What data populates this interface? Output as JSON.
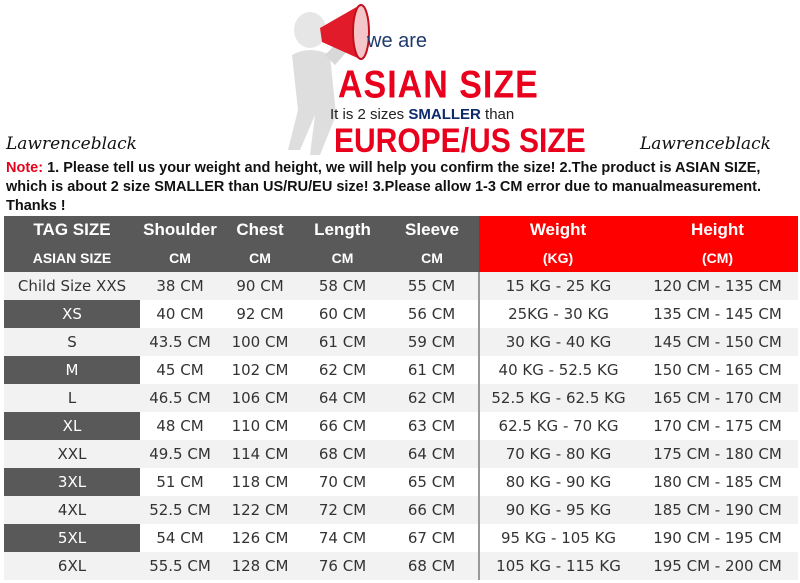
{
  "banner": {
    "we_are": "we are",
    "asian_size": "ASIAN SIZE",
    "line_prefix": "It is 2 sizes",
    "line_bold": "SMALLER",
    "line_suffix": "than",
    "europe_us": "EUROPE/US SIZE"
  },
  "brand_left": "Lawrenceblack",
  "brand_right": "Lawrenceblack",
  "note": {
    "label": "Note:",
    "text": "1. Please tell us your weight and height, we will help you confirm the size!  2.The product is ASIAN SIZE, which is about 2 size SMALLER than US/RU/EU size!  3.Please allow 1-3 CM error due to manualmeasurement. Thanks !"
  },
  "colors": {
    "accent_red": "#ff0000",
    "header_gray": "#595959"
  },
  "table": {
    "headers": [
      "TAG SIZE",
      "Shoulder",
      "Chest",
      "Length",
      "Sleeve",
      "Weight",
      "Height"
    ],
    "subheaders": [
      "ASIAN SIZE",
      "CM",
      "CM",
      "CM",
      "CM",
      "(KG)",
      "(CM)"
    ],
    "rows": [
      [
        "Child Size XXS",
        "38 CM",
        "90 CM",
        "58 CM",
        "55 CM",
        "15 KG - 25 KG",
        "120 CM  - 135 CM"
      ],
      [
        "XS",
        "40 CM",
        "92 CM",
        "60 CM",
        "56 CM",
        "25KG  - 30 KG",
        "135 CM - 145 CM"
      ],
      [
        "S",
        "43.5 CM",
        "100 CM",
        "61 CM",
        "59 CM",
        "30 KG - 40 KG",
        "145 CM  - 150 CM"
      ],
      [
        "M",
        "45 CM",
        "102 CM",
        "62 CM",
        "61 CM",
        "40 KG - 52.5 KG",
        "150 CM  - 165 CM"
      ],
      [
        "L",
        "46.5 CM",
        "106 CM",
        "64 CM",
        "62 CM",
        "52.5 KG  - 62.5 KG",
        "165 CM  - 170 CM"
      ],
      [
        "XL",
        "48 CM",
        "110 CM",
        "66 CM",
        "63 CM",
        "62.5 KG - 70 KG",
        "170 CM  - 175 CM"
      ],
      [
        "XXL",
        "49.5 CM",
        "114 CM",
        "68 CM",
        "64 CM",
        "70 KG  - 80  KG",
        "175 CM  - 180 CM"
      ],
      [
        "3XL",
        "51 CM",
        "118 CM",
        "70 CM",
        "65 CM",
        "80 KG  - 90  KG",
        "180 CM  - 185 CM"
      ],
      [
        "4XL",
        "52.5 CM",
        "122 CM",
        "72 CM",
        "66 CM",
        "90 KG  - 95 KG",
        "185 CM  - 190 CM"
      ],
      [
        "5XL",
        "54 CM",
        "126 CM",
        "74 CM",
        "67 CM",
        "95 KG  - 105 KG",
        "190 CM  - 195 CM"
      ],
      [
        "6XL",
        "55.5 CM",
        "128 CM",
        "76 CM",
        "68 CM",
        "105 KG - 115 KG",
        "195 CM  - 200 CM"
      ]
    ]
  }
}
